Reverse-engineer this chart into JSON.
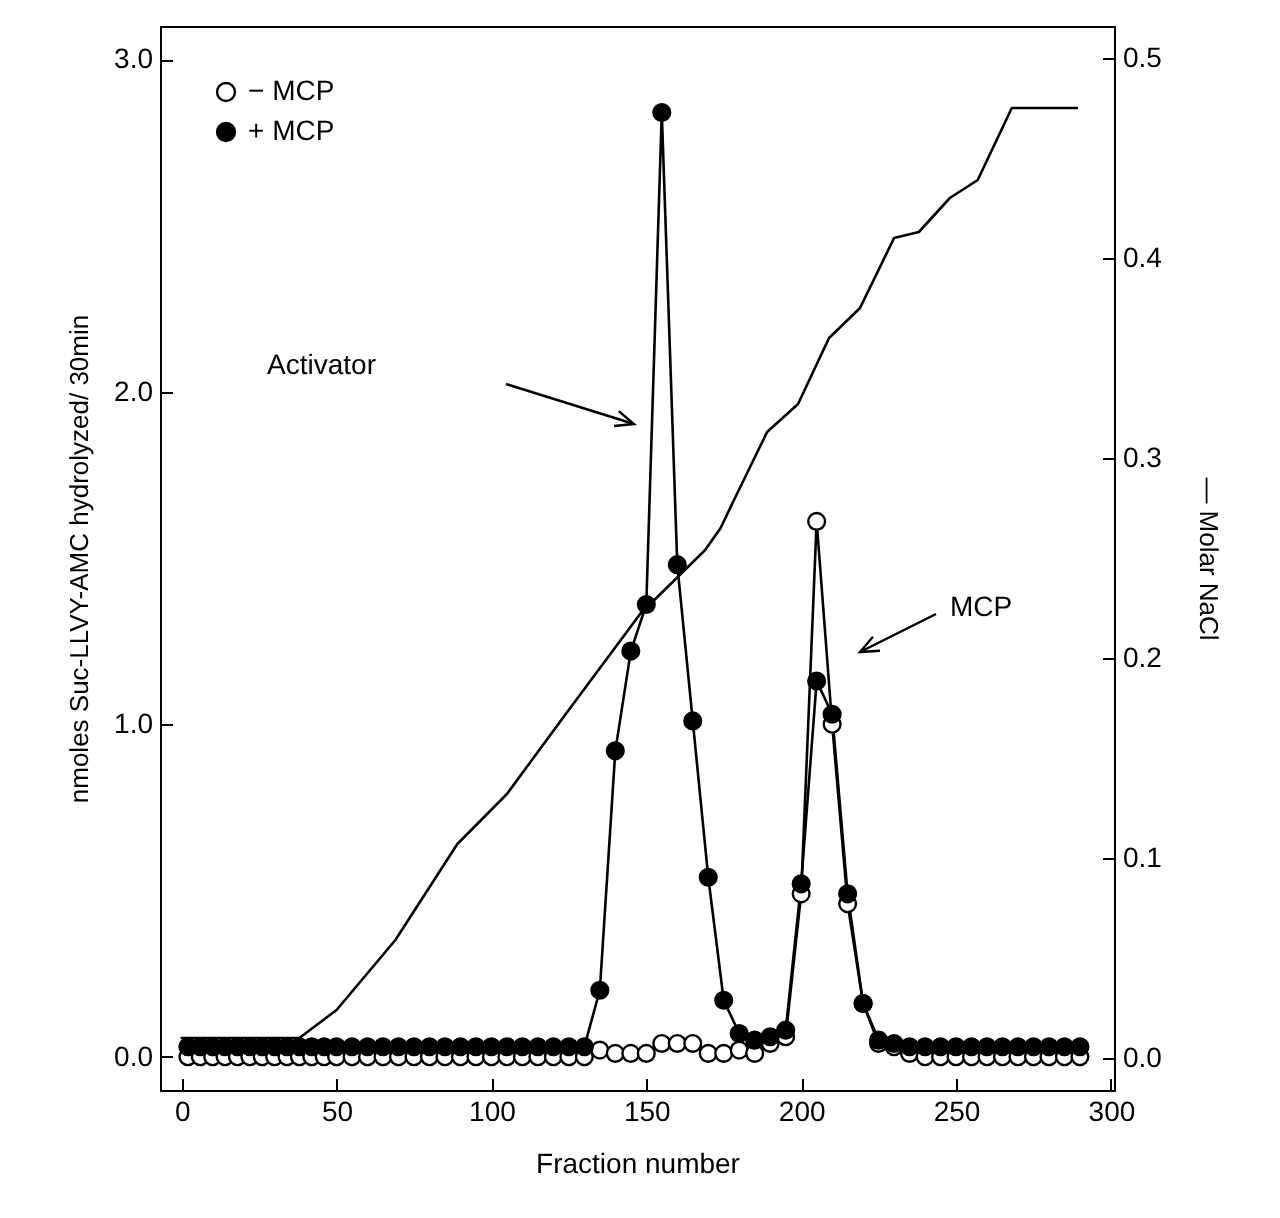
{
  "chart_data": {
    "type": "line",
    "xlabel": "Fraction number",
    "ylabel": "nmoles Suc-LLVY-AMC hydrolyzed/ 30min",
    "y2label": "— Molar NaCl",
    "xlim": [
      -7,
      301
    ],
    "xticks": [
      0,
      50,
      100,
      150,
      200,
      250,
      300
    ],
    "ylim": [
      -0.1,
      3.1
    ],
    "yticks": [
      {
        "value": 0,
        "label": "0.0"
      },
      {
        "value": 1,
        "label": "1.0"
      },
      {
        "value": 2,
        "label": "2.0"
      },
      {
        "value": 3,
        "label": "3.0"
      }
    ],
    "y2lim": [
      -0.016,
      0.516
    ],
    "y2ticks": [
      {
        "value": 0,
        "label": "0.0"
      },
      {
        "value": 0.1,
        "label": "0.1"
      },
      {
        "value": 0.2,
        "label": "0.2"
      },
      {
        "value": 0.3,
        "label": "0.3"
      },
      {
        "value": 0.4,
        "label": "0.4"
      },
      {
        "value": 0.5,
        "label": "0.5"
      }
    ],
    "grid": false,
    "legend": "top left",
    "series": [
      {
        "name": "− MCP",
        "color": "#000000",
        "marker": "circle",
        "x": [
          2,
          6,
          10,
          14,
          18,
          22,
          26,
          30,
          34,
          38,
          42,
          46,
          50,
          55,
          60,
          65,
          70,
          75,
          80,
          85,
          90,
          95,
          100,
          105,
          110,
          115,
          120,
          125,
          130,
          135,
          140,
          145,
          150,
          155,
          160,
          165,
          170,
          175,
          180,
          185,
          190,
          195,
          200,
          205,
          210,
          215,
          220,
          225,
          230,
          235,
          240,
          245,
          250,
          255,
          260,
          265,
          270,
          275,
          280,
          285,
          290
        ],
        "values": [
          0,
          0,
          0,
          0,
          0,
          0,
          0,
          0,
          0,
          0,
          0,
          0,
          0,
          0,
          0,
          0,
          0,
          0,
          0,
          0,
          0,
          0,
          0,
          0,
          0,
          0,
          0,
          0,
          0,
          0.02,
          0.01,
          0.01,
          0.01,
          0.04,
          0.04,
          0.04,
          0.01,
          0.01,
          0.02,
          0.01,
          0.04,
          0.06,
          0.49,
          1.61,
          1.0,
          0.46,
          0.16,
          0.04,
          0.03,
          0.01,
          0,
          0,
          0,
          0,
          0,
          0,
          0,
          0,
          0,
          0,
          0
        ]
      },
      {
        "name": "+ MCP",
        "color": "#000000",
        "marker": "circle",
        "x": [
          2,
          6,
          10,
          14,
          18,
          22,
          26,
          30,
          34,
          38,
          42,
          46,
          50,
          55,
          60,
          65,
          70,
          75,
          80,
          85,
          90,
          95,
          100,
          105,
          110,
          115,
          120,
          125,
          130,
          135,
          140,
          145,
          150,
          155,
          160,
          165,
          170,
          175,
          180,
          185,
          190,
          195,
          200,
          205,
          210,
          215,
          220,
          225,
          230,
          235,
          240,
          245,
          250,
          255,
          260,
          265,
          270,
          275,
          280,
          285,
          290
        ],
        "values": [
          0.03,
          0.03,
          0.03,
          0.03,
          0.03,
          0.03,
          0.03,
          0.03,
          0.03,
          0.03,
          0.03,
          0.03,
          0.03,
          0.03,
          0.03,
          0.03,
          0.03,
          0.03,
          0.03,
          0.03,
          0.03,
          0.03,
          0.03,
          0.03,
          0.03,
          0.03,
          0.03,
          0.03,
          0.03,
          0.2,
          0.92,
          1.22,
          1.36,
          2.84,
          1.48,
          1.01,
          0.54,
          0.17,
          0.07,
          0.05,
          0.06,
          0.08,
          0.52,
          1.13,
          1.03,
          0.49,
          0.16,
          0.05,
          0.04,
          0.03,
          0.03,
          0.03,
          0.03,
          0.03,
          0.03,
          0.03,
          0.03,
          0.03,
          0.03,
          0.03,
          0.03
        ]
      },
      {
        "color": "#000000",
        "axis": "y2",
        "x": [
          0,
          38,
          50,
          69,
          89,
          105,
          124,
          148,
          169,
          174,
          178,
          189,
          199,
          209,
          219,
          230,
          238,
          248,
          257,
          268,
          289
        ],
        "values": [
          0.01,
          0.01,
          0.024,
          0.059,
          0.107,
          0.132,
          0.172,
          0.222,
          0.254,
          0.265,
          0.278,
          0.313,
          0.327,
          0.36,
          0.375,
          0.41,
          0.413,
          0.43,
          0.439,
          0.475,
          0.475
        ]
      }
    ],
    "annotations": [
      "Activator",
      "MCP"
    ]
  }
}
